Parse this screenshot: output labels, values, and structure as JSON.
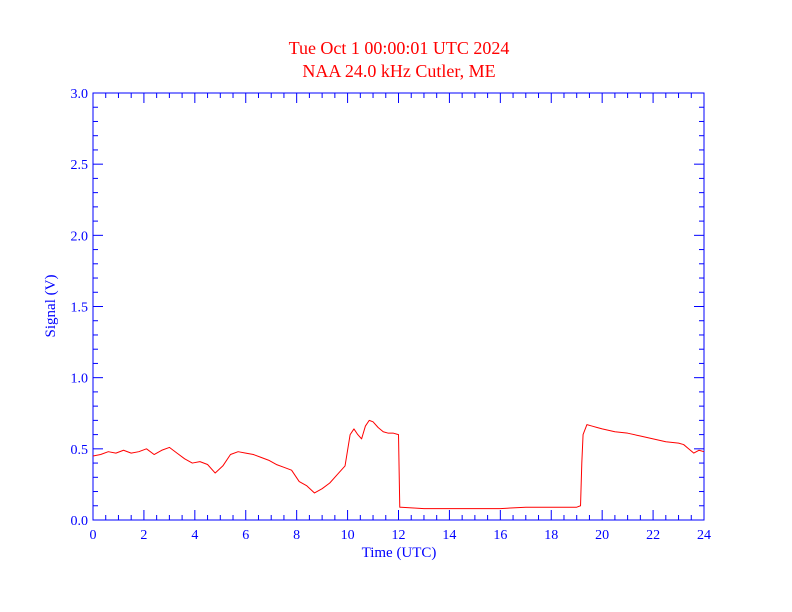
{
  "chart_data": {
    "type": "line",
    "title": "Tue Oct 1 00:00:01 UTC 2024",
    "subtitle": "NAA 24.0 kHz Cutler, ME",
    "xlabel": "Time (UTC)",
    "ylabel": "Signal (V)",
    "xlim": [
      0,
      24
    ],
    "ylim": [
      0,
      3.0
    ],
    "x_ticks": [
      0,
      2,
      4,
      6,
      8,
      10,
      12,
      14,
      16,
      18,
      20,
      22,
      24
    ],
    "x_tick_labels": [
      "0",
      "2",
      "4",
      "6",
      "8",
      "10",
      "12",
      "14",
      "16",
      "18",
      "20",
      "22",
      "24"
    ],
    "y_ticks": [
      0,
      0.5,
      1.0,
      1.5,
      2.0,
      2.5,
      3.0
    ],
    "y_tick_labels": [
      "0.0",
      "0.5",
      "1.0",
      "1.5",
      "2.0",
      "2.5",
      "3.0"
    ],
    "grid": false,
    "colors": {
      "axis": "#0000ff",
      "title": "#ff0000",
      "series": "#ff0000"
    },
    "series": [
      {
        "x": [
          0,
          0.3,
          0.6,
          0.9,
          1.2,
          1.5,
          1.8,
          2.1,
          2.4,
          2.7,
          3.0,
          3.3,
          3.6,
          3.9,
          4.2,
          4.5,
          4.8,
          5.1,
          5.4,
          5.7,
          6.0,
          6.3,
          6.6,
          6.9,
          7.2,
          7.5,
          7.8,
          8.1,
          8.4,
          8.7,
          9.0,
          9.3,
          9.6,
          9.9,
          10.1,
          10.25,
          10.4,
          10.55,
          10.7,
          10.85,
          11.0,
          11.2,
          11.4,
          11.6,
          11.8,
          12.0,
          12.05,
          12.1,
          13.0,
          14.0,
          15.0,
          16.0,
          17.0,
          18.0,
          19.0,
          19.15,
          19.2,
          19.25,
          19.4,
          19.6,
          19.8,
          20.0,
          20.5,
          21.0,
          21.5,
          22.0,
          22.5,
          23.0,
          23.2,
          23.4,
          23.6,
          23.8,
          24.0
        ],
        "values": [
          0.45,
          0.46,
          0.48,
          0.47,
          0.49,
          0.47,
          0.48,
          0.5,
          0.46,
          0.49,
          0.51,
          0.47,
          0.43,
          0.4,
          0.41,
          0.39,
          0.33,
          0.38,
          0.46,
          0.48,
          0.47,
          0.46,
          0.44,
          0.42,
          0.39,
          0.37,
          0.35,
          0.27,
          0.24,
          0.19,
          0.22,
          0.26,
          0.32,
          0.38,
          0.6,
          0.64,
          0.6,
          0.57,
          0.66,
          0.7,
          0.69,
          0.65,
          0.62,
          0.61,
          0.61,
          0.6,
          0.09,
          0.09,
          0.08,
          0.08,
          0.08,
          0.08,
          0.09,
          0.09,
          0.09,
          0.1,
          0.4,
          0.6,
          0.67,
          0.66,
          0.65,
          0.64,
          0.62,
          0.61,
          0.59,
          0.57,
          0.55,
          0.54,
          0.53,
          0.5,
          0.47,
          0.49,
          0.48
        ]
      }
    ]
  }
}
